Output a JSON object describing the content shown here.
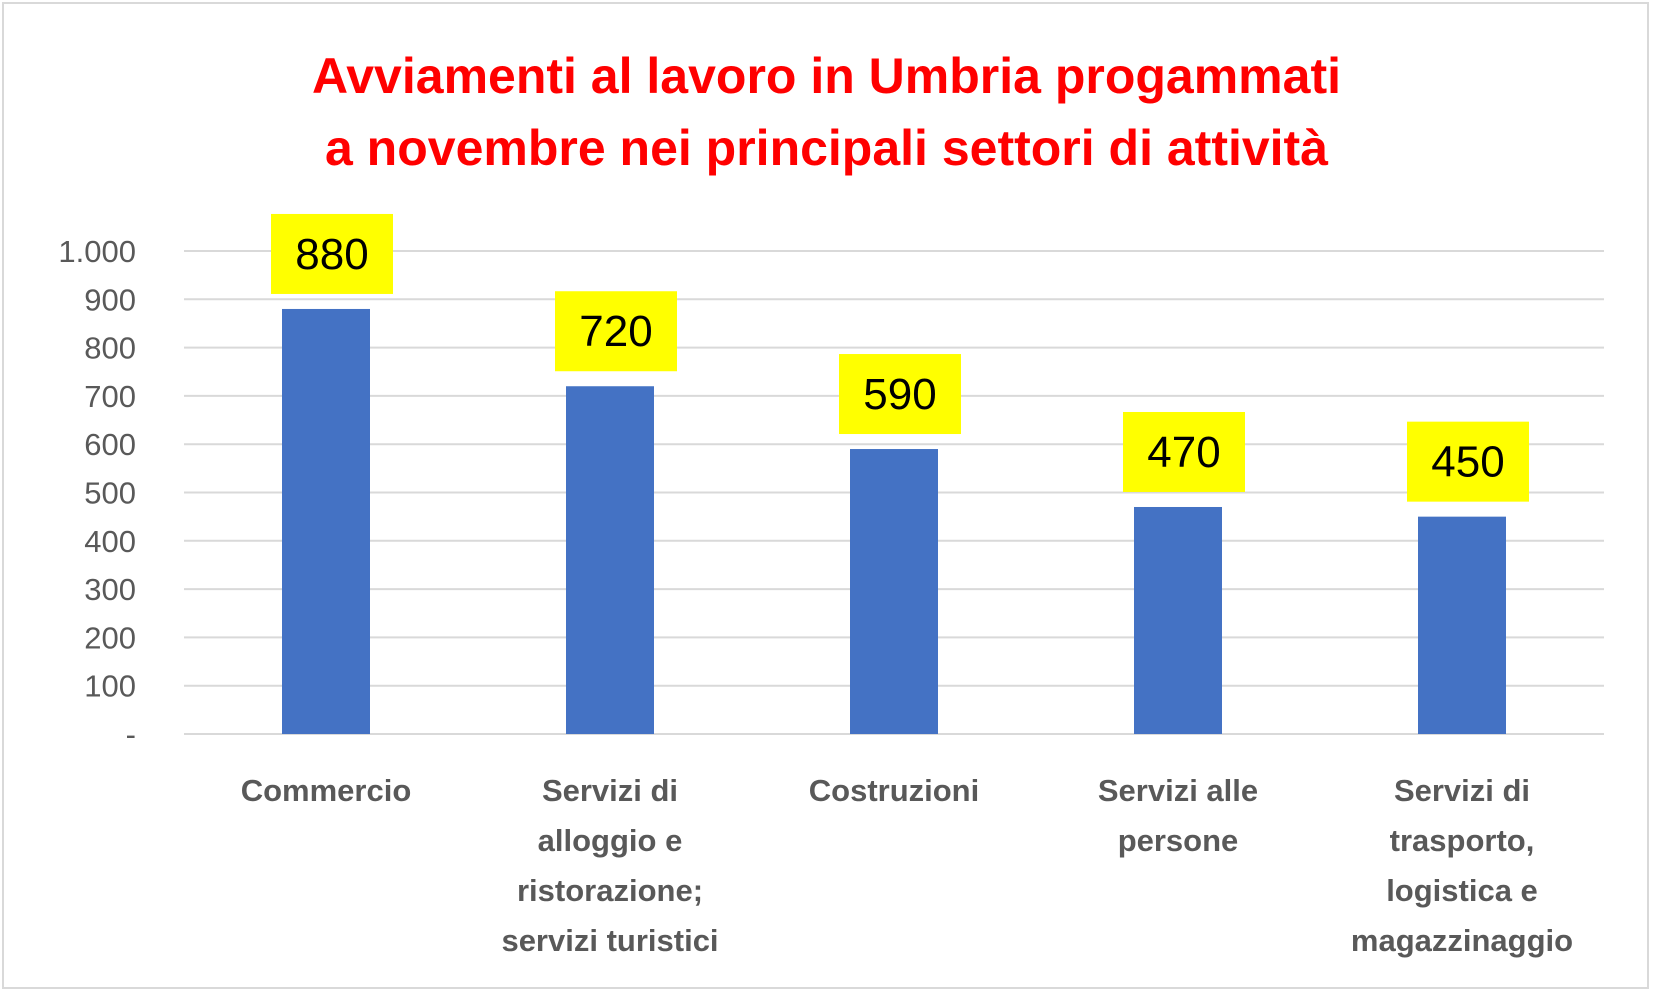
{
  "chart_data": {
    "type": "bar",
    "title_lines": [
      "Avviamenti al lavoro in Umbria progammati",
      "a novembre nei principali settori di attività"
    ],
    "categories": [
      [
        "Commercio"
      ],
      [
        "Servizi di",
        "alloggio e",
        "ristorazione;",
        "servizi turistici"
      ],
      [
        "Costruzioni"
      ],
      [
        "Servizi alle",
        "persone"
      ],
      [
        "Servizi di",
        "trasporto,",
        "logistica e",
        "magazzinaggio"
      ]
    ],
    "values": [
      880,
      720,
      590,
      470,
      450
    ],
    "data_labels": [
      "880",
      "720",
      "590",
      "470",
      "450"
    ],
    "ylim": [
      0,
      1000
    ],
    "yticks": [
      {
        "value": 0,
        "label": "-"
      },
      {
        "value": 100,
        "label": "100"
      },
      {
        "value": 200,
        "label": "200"
      },
      {
        "value": 300,
        "label": "300"
      },
      {
        "value": 400,
        "label": "400"
      },
      {
        "value": 500,
        "label": "500"
      },
      {
        "value": 600,
        "label": "600"
      },
      {
        "value": 700,
        "label": "700"
      },
      {
        "value": 800,
        "label": "800"
      },
      {
        "value": 900,
        "label": "900"
      },
      {
        "value": 1000,
        "label": "1.000"
      }
    ],
    "grid": true,
    "legend": "none",
    "colors": {
      "bar": "#4472c4",
      "title": "#ff0000",
      "label_box": "#ffff00",
      "gridline": "#d9d9d9",
      "axis_text": "#595959"
    }
  }
}
